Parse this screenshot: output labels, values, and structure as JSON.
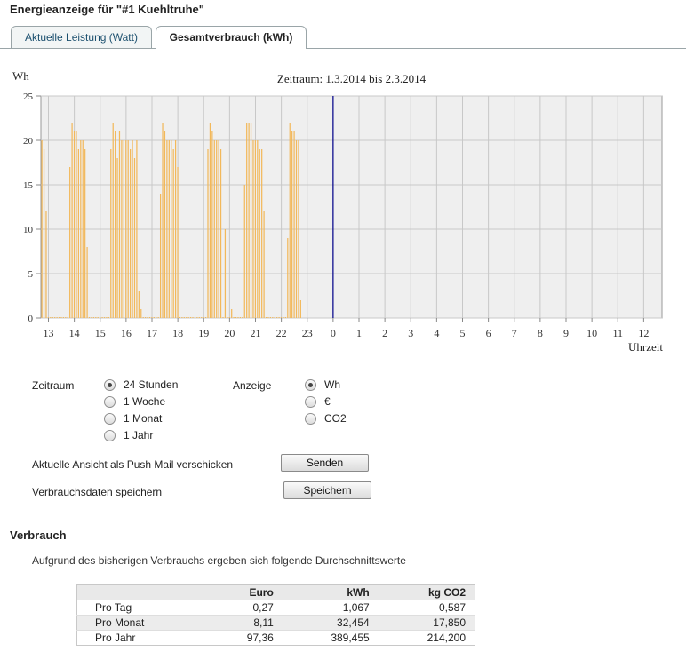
{
  "page": {
    "title": "Energieanzeige für \"#1 Kuehltruhe\""
  },
  "tabs": [
    {
      "label": "Aktuelle Leistung (Watt)",
      "active": false
    },
    {
      "label": "Gesamtverbrauch (kWh)",
      "active": true
    }
  ],
  "chart_data": {
    "type": "bar",
    "title": "Zeitraum: 1.3.2014 bis 2.3.2014",
    "ylabel": "Wh",
    "xlabel": "Uhrzeit",
    "ylim": [
      0,
      25
    ],
    "yticks": [
      0,
      5,
      10,
      15,
      20,
      25
    ],
    "grid": true,
    "bar_color": "#f2b85a",
    "marker_color": "#00008b",
    "marker_label": "0",
    "hour_labels": [
      "13",
      "14",
      "15",
      "16",
      "17",
      "18",
      "19",
      "20",
      "21",
      "22",
      "23",
      "0",
      "1",
      "2",
      "3",
      "4",
      "5",
      "6",
      "7",
      "8",
      "9",
      "10",
      "11",
      "12"
    ],
    "interval_minutes": 5,
    "values": [
      20,
      19,
      12,
      0,
      0,
      0,
      0,
      0,
      0,
      0,
      0,
      0,
      0,
      17,
      22,
      21,
      21,
      19,
      20,
      20,
      19,
      8,
      0,
      0,
      0,
      0,
      0,
      0,
      0,
      0,
      0,
      0,
      19,
      22,
      21,
      18,
      21,
      20,
      20,
      20,
      20,
      19,
      20,
      18,
      20,
      3,
      1,
      0,
      0,
      0,
      0,
      0,
      0,
      0,
      0,
      14,
      22,
      21,
      20,
      20,
      20,
      19,
      20,
      17,
      0,
      0,
      0,
      0,
      0,
      0,
      0,
      0,
      0,
      0,
      0,
      0,
      0,
      19,
      22,
      21,
      20,
      20,
      20,
      19,
      0,
      10,
      0,
      0,
      1,
      0,
      0,
      0,
      0,
      0,
      15,
      22,
      22,
      22,
      20,
      20,
      20,
      19,
      19,
      12,
      0,
      0,
      0,
      0,
      0,
      0,
      0,
      0,
      0,
      0,
      9,
      22,
      21,
      21,
      20,
      20,
      2
    ]
  },
  "controls": {
    "zeitraum_label": "Zeitraum",
    "zeitraum_options": [
      {
        "label": "24 Stunden",
        "selected": true
      },
      {
        "label": "1 Woche",
        "selected": false
      },
      {
        "label": "1 Monat",
        "selected": false
      },
      {
        "label": "1 Jahr",
        "selected": false
      }
    ],
    "anzeige_label": "Anzeige",
    "anzeige_options": [
      {
        "label": "Wh",
        "selected": true
      },
      {
        "label": "€",
        "selected": false
      },
      {
        "label": "CO2",
        "selected": false
      }
    ],
    "push_mail_label": "Aktuelle Ansicht als Push Mail verschicken",
    "send_button": "Senden",
    "save_label": "Verbrauchsdaten speichern",
    "save_button": "Speichern"
  },
  "verbrauch": {
    "heading": "Verbrauch",
    "info": "Aufgrund des bisherigen Verbrauchs ergeben sich folgende Durchschnittswerte",
    "columns": [
      "",
      "Euro",
      "kWh",
      "kg CO2"
    ],
    "rows": [
      [
        "Pro Tag",
        "0,27",
        "1,067",
        "0,587"
      ],
      [
        "Pro Monat",
        "8,11",
        "32,454",
        "17,850"
      ],
      [
        "Pro Jahr",
        "97,36",
        "389,455",
        "214,200"
      ]
    ]
  }
}
